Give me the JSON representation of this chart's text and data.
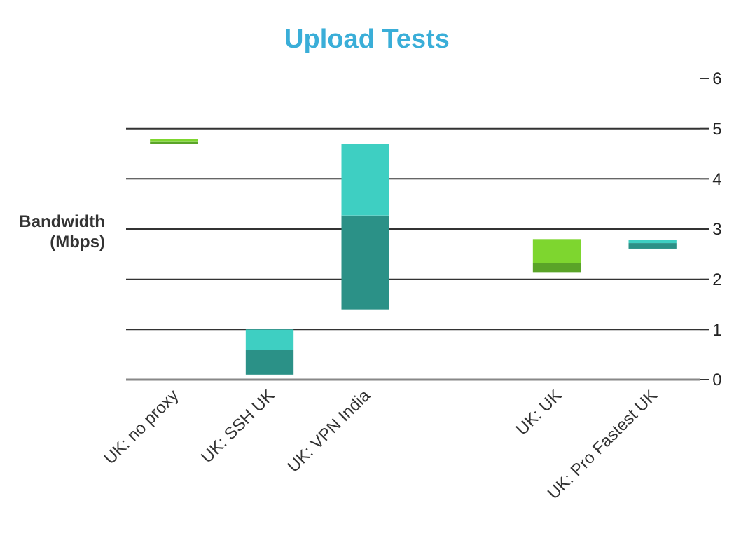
{
  "chart_data": {
    "type": "bar",
    "title": "Upload Tests",
    "ylabel": "Bandwidth (Mbps)",
    "categories": [
      "UK: no proxy",
      "UK: SSH UK",
      "UK: VPN India",
      null,
      "UK: UK",
      "UK: Pro Fastest UK"
    ],
    "series": [
      {
        "colors": [
          "#5aa428",
          "#2b9187",
          "#2b9187",
          null,
          "#5aa428",
          "#2b9187"
        ],
        "base": [
          4.7,
          0.1,
          1.4,
          null,
          2.13,
          2.61
        ],
        "values": [
          0.05,
          0.5,
          1.87,
          null,
          0.19,
          0.11
        ]
      },
      {
        "colors": [
          "#7ed62f",
          "#3ecfc2",
          "#3ecfc2",
          null,
          "#7ed62f",
          "#3ecfc2"
        ],
        "base": [
          4.75,
          0.6,
          3.27,
          null,
          2.32,
          2.72
        ],
        "values": [
          0.05,
          0.4,
          1.42,
          null,
          0.48,
          0.07
        ]
      }
    ],
    "ylim": [
      0,
      6
    ],
    "yticks": [
      0,
      1,
      2,
      3,
      4,
      5,
      6
    ],
    "grid": "y"
  }
}
